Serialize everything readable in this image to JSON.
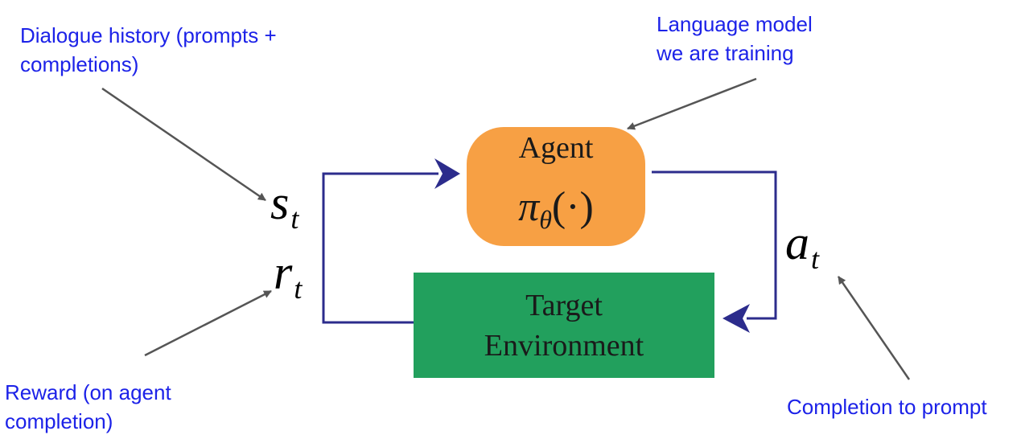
{
  "annotations": {
    "state_note": [
      "Dialogue history (prompts +",
      "completions)"
    ],
    "agent_note": [
      "Language model",
      "we are training"
    ],
    "reward_note": [
      "Reward (on agent",
      "completion)"
    ],
    "action_note": [
      "Completion to prompt"
    ]
  },
  "agent_box": {
    "title": "Agent",
    "policy": {
      "symbol": "π",
      "subscript": "θ",
      "argument": "(·)"
    }
  },
  "environment_box": {
    "lines": [
      "Target",
      "Environment"
    ]
  },
  "symbols": {
    "state": {
      "main": "s",
      "sub": "t"
    },
    "reward": {
      "main": "r",
      "sub": "t"
    },
    "action": {
      "main": "a",
      "sub": "t"
    }
  },
  "colors": {
    "annotation_text": "#1c22e8",
    "agent_fill": "#f7a044",
    "environment_fill": "#22a05d",
    "loop_line": "#2c2c8c",
    "pointer_arrow": "#555555"
  }
}
